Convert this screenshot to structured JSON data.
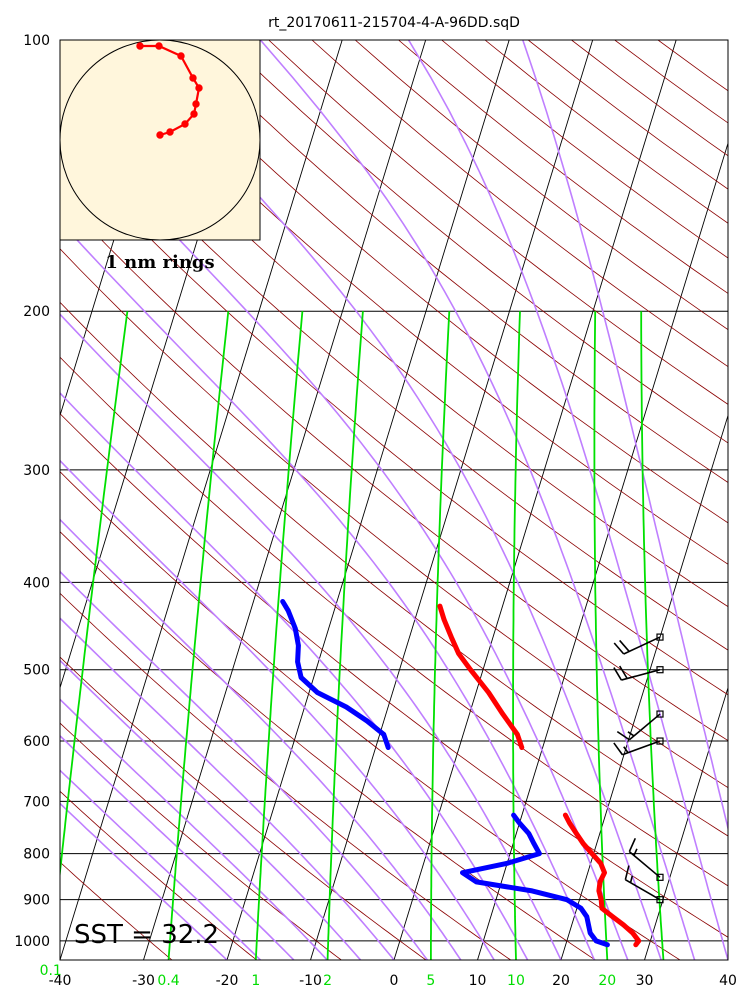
{
  "title": "rt_20170611-215704-4-A-96DD.sqD",
  "sst_label": "SST = 32.2",
  "hodograph_label": "1 nm rings",
  "colors": {
    "temperature": "#ff0000",
    "dewpoint": "#0000ff",
    "isotherm": "#000000",
    "dry_adiabat": "#8b0000",
    "moist_adiabat": "#bf7fff",
    "mixing_ratio": "#00e000",
    "hodograph_bg": "#fff6dc",
    "hodograph_trace": "#ff0000",
    "wind_barb": "#000000"
  },
  "chart_data": {
    "type": "skew-t",
    "title": "rt_20170611-215704-4-A-96DD.sqD",
    "x_axis": {
      "label": "",
      "range": [
        -40,
        40
      ],
      "ticks": [
        -40,
        -30,
        -20,
        -10,
        0,
        10,
        20,
        30,
        40
      ]
    },
    "y_axis": {
      "label": "",
      "scale": "log",
      "range": [
        1050,
        100
      ],
      "ticks": [
        100,
        200,
        300,
        400,
        500,
        600,
        700,
        800,
        900,
        1000
      ]
    },
    "mixing_ratio_ticks": [
      0.1,
      0.4,
      1,
      2,
      5,
      10,
      20
    ],
    "grid": true,
    "temperature_profile": [
      {
        "p": 1010,
        "t": 28.4
      },
      {
        "p": 1000,
        "t": 28.6
      },
      {
        "p": 980,
        "t": 27.6
      },
      {
        "p": 960,
        "t": 26.2
      },
      {
        "p": 940,
        "t": 24.6
      },
      {
        "p": 920,
        "t": 23.0
      },
      {
        "p": 900,
        "t": 22.6
      },
      {
        "p": 880,
        "t": 22.0
      },
      {
        "p": 860,
        "t": 21.8
      },
      {
        "p": 840,
        "t": 22.0
      },
      {
        "p": 820,
        "t": 21.2
      },
      {
        "p": 800,
        "t": 19.8
      },
      {
        "p": 780,
        "t": 18.4
      },
      {
        "p": 760,
        "t": 17.2
      },
      {
        "p": 740,
        "t": 16.0
      },
      {
        "p": 725,
        "t": 15.2
      },
      {
        "p": 610,
        "t": 7.5
      },
      {
        "p": 590,
        "t": 6.5
      },
      {
        "p": 560,
        "t": 4.0
      },
      {
        "p": 530,
        "t": 1.5
      },
      {
        "p": 500,
        "t": -1.5
      },
      {
        "p": 480,
        "t": -3.5
      },
      {
        "p": 460,
        "t": -5.0
      },
      {
        "p": 440,
        "t": -6.5
      },
      {
        "p": 425,
        "t": -7.5
      }
    ],
    "dewpoint_profile": [
      {
        "p": 1010,
        "t": 25.0
      },
      {
        "p": 1000,
        "t": 23.5
      },
      {
        "p": 980,
        "t": 22.5
      },
      {
        "p": 960,
        "t": 22.0
      },
      {
        "p": 940,
        "t": 21.5
      },
      {
        "p": 920,
        "t": 20.5
      },
      {
        "p": 900,
        "t": 18.5
      },
      {
        "p": 880,
        "t": 14.0
      },
      {
        "p": 860,
        "t": 7.0
      },
      {
        "p": 840,
        "t": 5.0
      },
      {
        "p": 820,
        "t": 10.0
      },
      {
        "p": 800,
        "t": 13.5
      },
      {
        "p": 780,
        "t": 12.5
      },
      {
        "p": 760,
        "t": 11.5
      },
      {
        "p": 740,
        "t": 10.0
      },
      {
        "p": 725,
        "t": 9.0
      },
      {
        "p": 610,
        "t": -8.5
      },
      {
        "p": 590,
        "t": -9.5
      },
      {
        "p": 570,
        "t": -12.0
      },
      {
        "p": 550,
        "t": -15.0
      },
      {
        "p": 530,
        "t": -19.0
      },
      {
        "p": 510,
        "t": -21.5
      },
      {
        "p": 490,
        "t": -22.5
      },
      {
        "p": 470,
        "t": -23.0
      },
      {
        "p": 450,
        "t": -24.0
      },
      {
        "p": 430,
        "t": -25.5
      },
      {
        "p": 420,
        "t": -26.5
      }
    ],
    "wind_barbs": [
      {
        "p": 900,
        "dir": 300,
        "spd": 15
      },
      {
        "p": 850,
        "dir": 310,
        "spd": 15
      },
      {
        "p": 600,
        "dir": 250,
        "spd": 15
      },
      {
        "p": 560,
        "dir": 230,
        "spd": 15
      },
      {
        "p": 500,
        "dir": 255,
        "spd": 20
      },
      {
        "p": 460,
        "dir": 245,
        "spd": 20
      }
    ],
    "hodograph": {
      "ring_label": "1 nm rings",
      "points_nm": [
        [
          0.0,
          0.05
        ],
        [
          0.1,
          0.08
        ],
        [
          0.25,
          0.16
        ],
        [
          0.34,
          0.26
        ],
        [
          0.36,
          0.36
        ],
        [
          0.39,
          0.52
        ],
        [
          0.33,
          0.62
        ],
        [
          0.21,
          0.84
        ],
        [
          -0.01,
          0.94
        ],
        [
          -0.2,
          0.94
        ]
      ]
    },
    "annotations": [
      "SST = 32.2"
    ]
  }
}
